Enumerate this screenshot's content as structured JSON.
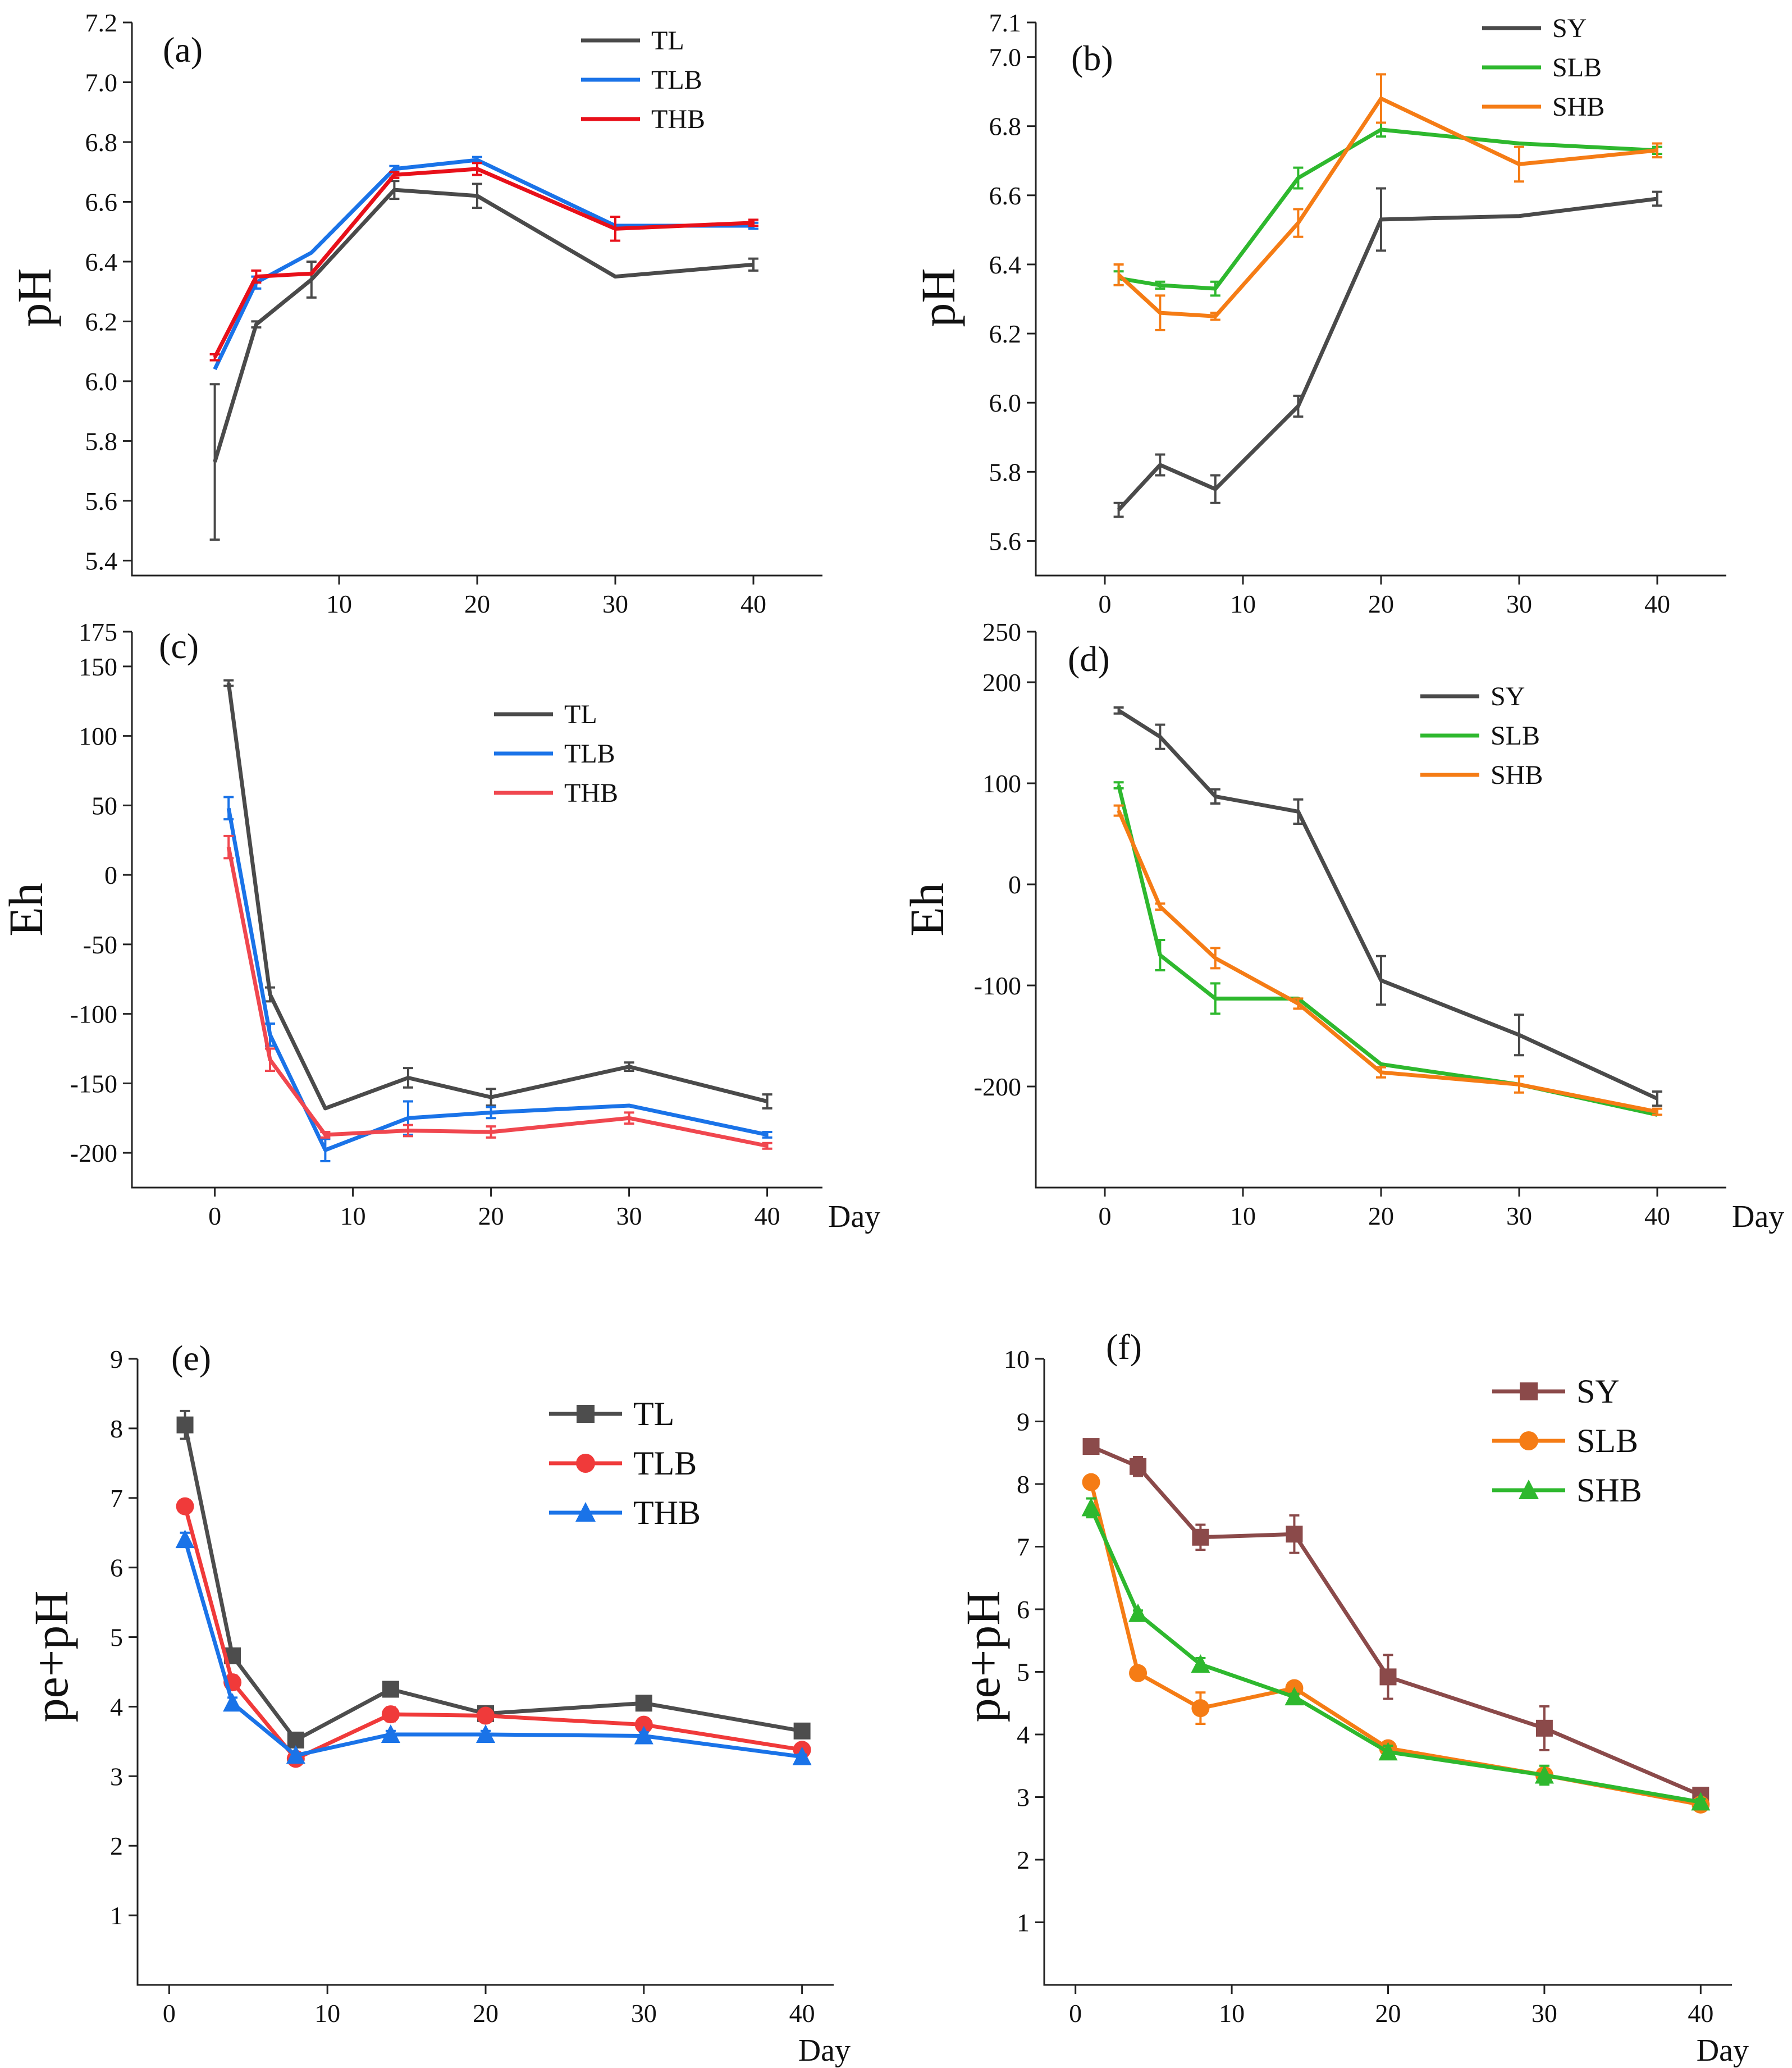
{
  "figure": {
    "charts": [
      {
        "id": "a",
        "panel_label": "(a)",
        "ylabel": "pH",
        "xlabel": "",
        "marker": "none",
        "legend_style": "small",
        "xlim": [
          -5,
          45
        ],
        "ylim": [
          5.35,
          7.2
        ],
        "xticks": [
          10,
          20,
          30,
          40
        ],
        "yticks": [
          5.4,
          5.6,
          5.8,
          6.0,
          6.2,
          6.4,
          6.6,
          6.8,
          7.0,
          7.2
        ],
        "ytick_labels": [
          "5.4",
          "5.6",
          "5.8",
          "6.0",
          "6.2",
          "6.4",
          "6.6",
          "6.8",
          "7.0",
          "7.2"
        ]
      },
      {
        "id": "b",
        "panel_label": "(b)",
        "ylabel": "pH",
        "xlabel": "",
        "marker": "none",
        "legend_style": "small",
        "xlim": [
          -5,
          45
        ],
        "ylim": [
          5.5,
          7.1
        ],
        "xticks": [
          0,
          10,
          20,
          30,
          40
        ],
        "yticks": [
          5.6,
          5.8,
          6.0,
          6.2,
          6.4,
          6.6,
          6.8,
          7.0,
          7.1
        ],
        "ytick_labels": [
          "5.6",
          "5.8",
          "6.0",
          "6.2",
          "6.4",
          "6.6",
          "6.8",
          "7.0",
          "7.1"
        ]
      },
      {
        "id": "c",
        "panel_label": "(c)",
        "ylabel": "Eh",
        "xlabel": "Day",
        "marker": "none",
        "legend_style": "small",
        "xlim": [
          -6,
          44
        ],
        "ylim": [
          -225,
          175
        ],
        "xticks": [
          0,
          10,
          20,
          30,
          40
        ],
        "yticks": [
          -200,
          -150,
          -100,
          -50,
          0,
          50,
          100,
          150,
          175
        ],
        "ytick_labels": [
          "-200",
          "-150",
          "-100",
          "-50",
          "0",
          "50",
          "100",
          "150",
          "175"
        ]
      },
      {
        "id": "d",
        "panel_label": "(d)",
        "ylabel": "Eh",
        "xlabel": "Day",
        "marker": "none",
        "legend_style": "small",
        "xlim": [
          -5,
          45
        ],
        "ylim": [
          -300,
          250
        ],
        "xticks": [
          0,
          10,
          20,
          30,
          40
        ],
        "yticks": [
          -200,
          -100,
          0,
          100,
          200,
          250
        ],
        "ytick_labels": [
          "-200",
          "-100",
          "0",
          "100",
          "200",
          "250"
        ]
      },
      {
        "id": "e",
        "panel_label": "(e)",
        "ylabel": "pe+pH",
        "xlabel": "Day",
        "marker": "yes",
        "legend_style": "big",
        "xlim": [
          -2,
          42
        ],
        "ylim": [
          0,
          9
        ],
        "xticks": [
          0,
          10,
          20,
          30,
          40
        ],
        "yticks": [
          1,
          2,
          3,
          4,
          5,
          6,
          7,
          8,
          9
        ],
        "ytick_labels": [
          "1",
          "2",
          "3",
          "4",
          "5",
          "6",
          "7",
          "8",
          "9"
        ]
      },
      {
        "id": "f",
        "panel_label": "(f)",
        "ylabel": "pe+pH",
        "xlabel": "Day",
        "marker": "yes",
        "legend_style": "big",
        "xlim": [
          -2,
          42
        ],
        "ylim": [
          0,
          10
        ],
        "xticks": [
          0,
          10,
          20,
          30,
          40
        ],
        "yticks": [
          1,
          2,
          3,
          4,
          5,
          6,
          7,
          8,
          9,
          10
        ],
        "ytick_labels": [
          "1",
          "2",
          "3",
          "4",
          "5",
          "6",
          "7",
          "8",
          "9",
          "10"
        ]
      }
    ]
  },
  "chart_data": [
    {
      "type": "line",
      "title": "(a)",
      "xlabel": "",
      "ylabel": "pH",
      "x": [
        1,
        4,
        8,
        14,
        20,
        30,
        40
      ],
      "series": [
        {
          "name": "TL",
          "color": "#4a4a4a",
          "values": [
            5.73,
            6.19,
            6.34,
            6.64,
            6.62,
            6.35,
            6.39
          ],
          "errors": [
            0.26,
            0.01,
            0.06,
            0.03,
            0.04,
            0.0,
            0.02
          ]
        },
        {
          "name": "TLB",
          "color": "#1a73e8",
          "values": [
            6.04,
            6.33,
            6.43,
            6.71,
            6.74,
            6.52,
            6.52
          ],
          "errors": [
            0.0,
            0.02,
            0.0,
            0.01,
            0.01,
            0.0,
            0.01
          ]
        },
        {
          "name": "THB",
          "color": "#e8101a",
          "values": [
            6.08,
            6.35,
            6.36,
            6.69,
            6.71,
            6.51,
            6.53
          ],
          "errors": [
            0.01,
            0.02,
            0.0,
            0.01,
            0.02,
            0.04,
            0.01
          ]
        }
      ]
    },
    {
      "type": "line",
      "title": "(b)",
      "xlabel": "",
      "ylabel": "pH",
      "x": [
        1,
        4,
        8,
        14,
        20,
        30,
        40
      ],
      "series": [
        {
          "name": "SY",
          "color": "#4a4a4a",
          "values": [
            5.69,
            5.82,
            5.75,
            5.99,
            6.53,
            6.54,
            6.59
          ],
          "errors": [
            0.02,
            0.03,
            0.04,
            0.03,
            0.09,
            0.0,
            0.02
          ]
        },
        {
          "name": "SLB",
          "color": "#2eb82e",
          "values": [
            6.36,
            6.34,
            6.33,
            6.65,
            6.79,
            6.75,
            6.73
          ],
          "errors": [
            0.02,
            0.01,
            0.02,
            0.03,
            0.02,
            0.0,
            0.01
          ]
        },
        {
          "name": "SHB",
          "color": "#f57c15",
          "values": [
            6.37,
            6.26,
            6.25,
            6.52,
            6.88,
            6.69,
            6.73
          ],
          "errors": [
            0.03,
            0.05,
            0.01,
            0.04,
            0.07,
            0.05,
            0.02
          ]
        }
      ]
    },
    {
      "type": "line",
      "title": "(c)",
      "xlabel": "Day",
      "ylabel": "Eh",
      "x": [
        1,
        4,
        8,
        14,
        20,
        30,
        40
      ],
      "series": [
        {
          "name": "TL",
          "color": "#4a4a4a",
          "values": [
            138,
            -86,
            -168,
            -146,
            -160,
            -138,
            -163
          ],
          "errors": [
            2,
            5,
            0,
            7,
            6,
            3,
            5
          ]
        },
        {
          "name": "TLB",
          "color": "#1a73e8",
          "values": [
            48,
            -115,
            -198,
            -175,
            -171,
            -166,
            -187
          ],
          "errors": [
            8,
            8,
            8,
            12,
            4,
            0,
            2
          ]
        },
        {
          "name": "THB",
          "color": "#f0474f",
          "values": [
            20,
            -133,
            -187,
            -184,
            -185,
            -175,
            -195
          ],
          "errors": [
            8,
            8,
            2,
            4,
            4,
            4,
            2
          ]
        }
      ]
    },
    {
      "type": "line",
      "title": "(d)",
      "xlabel": "Day",
      "ylabel": "Eh",
      "x": [
        1,
        4,
        8,
        14,
        20,
        30,
        40
      ],
      "series": [
        {
          "name": "SY",
          "color": "#4a4a4a",
          "values": [
            172,
            146,
            87,
            72,
            -95,
            -149,
            -212
          ],
          "errors": [
            3,
            12,
            7,
            12,
            24,
            20,
            7
          ]
        },
        {
          "name": "SLB",
          "color": "#2eb82e",
          "values": [
            98,
            -70,
            -113,
            -113,
            -178,
            -198,
            -228
          ],
          "errors": [
            3,
            15,
            15,
            0,
            0,
            0,
            0
          ]
        },
        {
          "name": "SHB",
          "color": "#f57c15",
          "values": [
            73,
            -22,
            -73,
            -118,
            -186,
            -198,
            -225
          ],
          "errors": [
            5,
            3,
            10,
            5,
            5,
            8,
            3
          ]
        }
      ]
    },
    {
      "type": "line",
      "title": "(e)",
      "xlabel": "Day",
      "ylabel": "pe+pH",
      "x": [
        1,
        4,
        8,
        14,
        20,
        30,
        40
      ],
      "series": [
        {
          "name": "TL",
          "color": "#4d4d4d",
          "marker": "square",
          "values": [
            8.05,
            4.73,
            3.52,
            4.25,
            3.9,
            4.05,
            3.65
          ],
          "errors": [
            0.2,
            0.05,
            0.03,
            0.05,
            0.05,
            0.05,
            0.05
          ]
        },
        {
          "name": "TLB",
          "color": "#f03a3a",
          "marker": "circle",
          "values": [
            6.88,
            4.35,
            3.25,
            3.89,
            3.87,
            3.74,
            3.38
          ],
          "errors": [
            0.05,
            0.1,
            0.03,
            0.1,
            0.05,
            0.05,
            0.03
          ]
        },
        {
          "name": "THB",
          "color": "#1a73e8",
          "marker": "triangle",
          "values": [
            6.4,
            4.05,
            3.3,
            3.6,
            3.6,
            3.58,
            3.28
          ],
          "errors": [
            0.1,
            0.08,
            0.03,
            0.05,
            0.05,
            0.05,
            0.03
          ]
        }
      ]
    },
    {
      "type": "line",
      "title": "(f)",
      "xlabel": "Day",
      "ylabel": "pe+pH",
      "x": [
        1,
        4,
        8,
        14,
        20,
        30,
        40
      ],
      "series": [
        {
          "name": "SY",
          "color": "#8b4a4a",
          "marker": "square",
          "values": [
            8.6,
            8.28,
            7.15,
            7.2,
            4.92,
            4.1,
            3.03
          ],
          "errors": [
            0.05,
            0.15,
            0.2,
            0.3,
            0.35,
            0.35,
            0.05
          ]
        },
        {
          "name": "SLB",
          "color": "#f57c15",
          "marker": "circle",
          "values": [
            8.03,
            4.98,
            4.42,
            4.74,
            3.78,
            3.35,
            2.88
          ],
          "errors": [
            0.03,
            0.05,
            0.25,
            0.05,
            0.1,
            0.1,
            0.05
          ]
        },
        {
          "name": "SHB",
          "color": "#2eb82e",
          "marker": "triangle",
          "values": [
            7.62,
            5.93,
            5.12,
            4.6,
            3.72,
            3.35,
            2.92
          ],
          "errors": [
            0.15,
            0.05,
            0.1,
            0.05,
            0.1,
            0.15,
            0.05
          ]
        }
      ]
    }
  ]
}
